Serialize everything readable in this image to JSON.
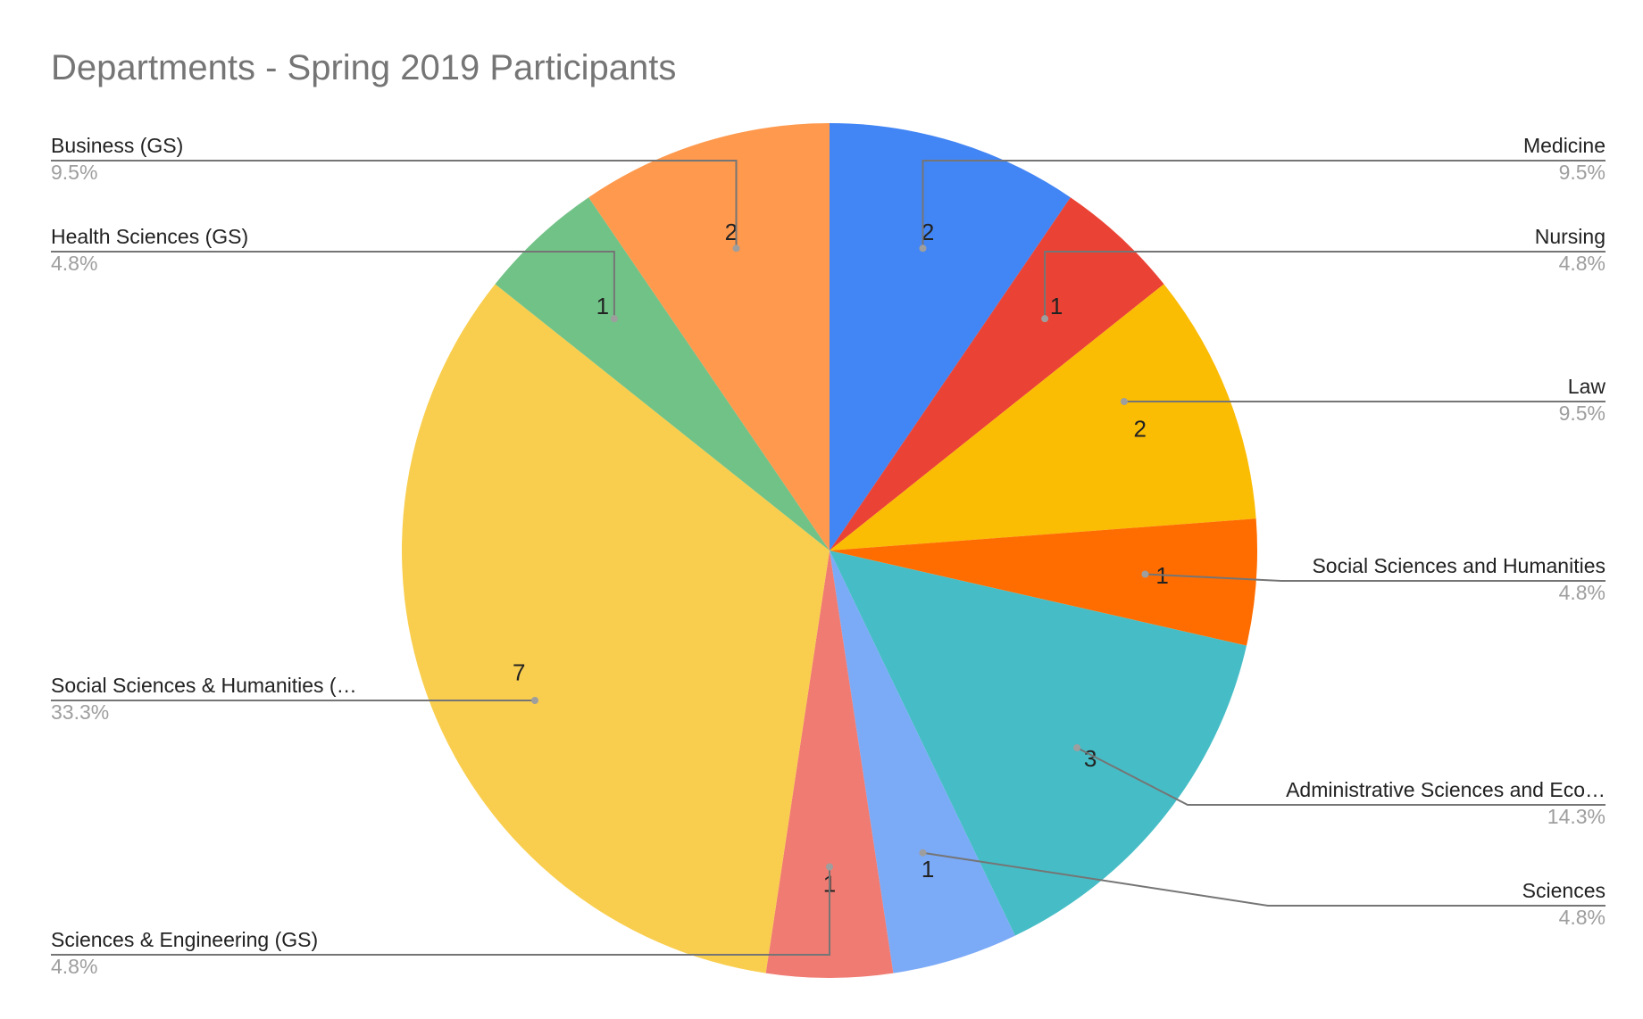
{
  "chart_data": {
    "type": "pie",
    "title": "Departments - Spring 2019 Participants",
    "slices": [
      {
        "label": "Medicine",
        "value": 2,
        "percent_label": "9.5%",
        "color": "#4285F4"
      },
      {
        "label": "Nursing",
        "value": 1,
        "percent_label": "4.8%",
        "color": "#EA4335"
      },
      {
        "label": "Law",
        "value": 2,
        "percent_label": "9.5%",
        "color": "#FBBC04"
      },
      {
        "label": "Social Sciences and Humanities",
        "value": 1,
        "percent_label": "4.8%",
        "color": "#FF6D01"
      },
      {
        "label": "Administrative Sciences and Eco…",
        "value": 3,
        "percent_label": "14.3%",
        "color": "#46BDC6"
      },
      {
        "label": "Sciences",
        "value": 1,
        "percent_label": "4.8%",
        "color": "#7BAAF7"
      },
      {
        "label": "Sciences & Engineering (GS)",
        "value": 1,
        "percent_label": "4.8%",
        "color": "#F07B72"
      },
      {
        "label": "Social Sciences & Humanities (…",
        "value": 7,
        "percent_label": "33.3%",
        "color": "#F9CE4E"
      },
      {
        "label": "Health Sciences (GS)",
        "value": 1,
        "percent_label": "4.8%",
        "color": "#71C287"
      },
      {
        "label": "Business (GS)",
        "value": 2,
        "percent_label": "9.5%",
        "color": "#FF994D"
      }
    ]
  }
}
